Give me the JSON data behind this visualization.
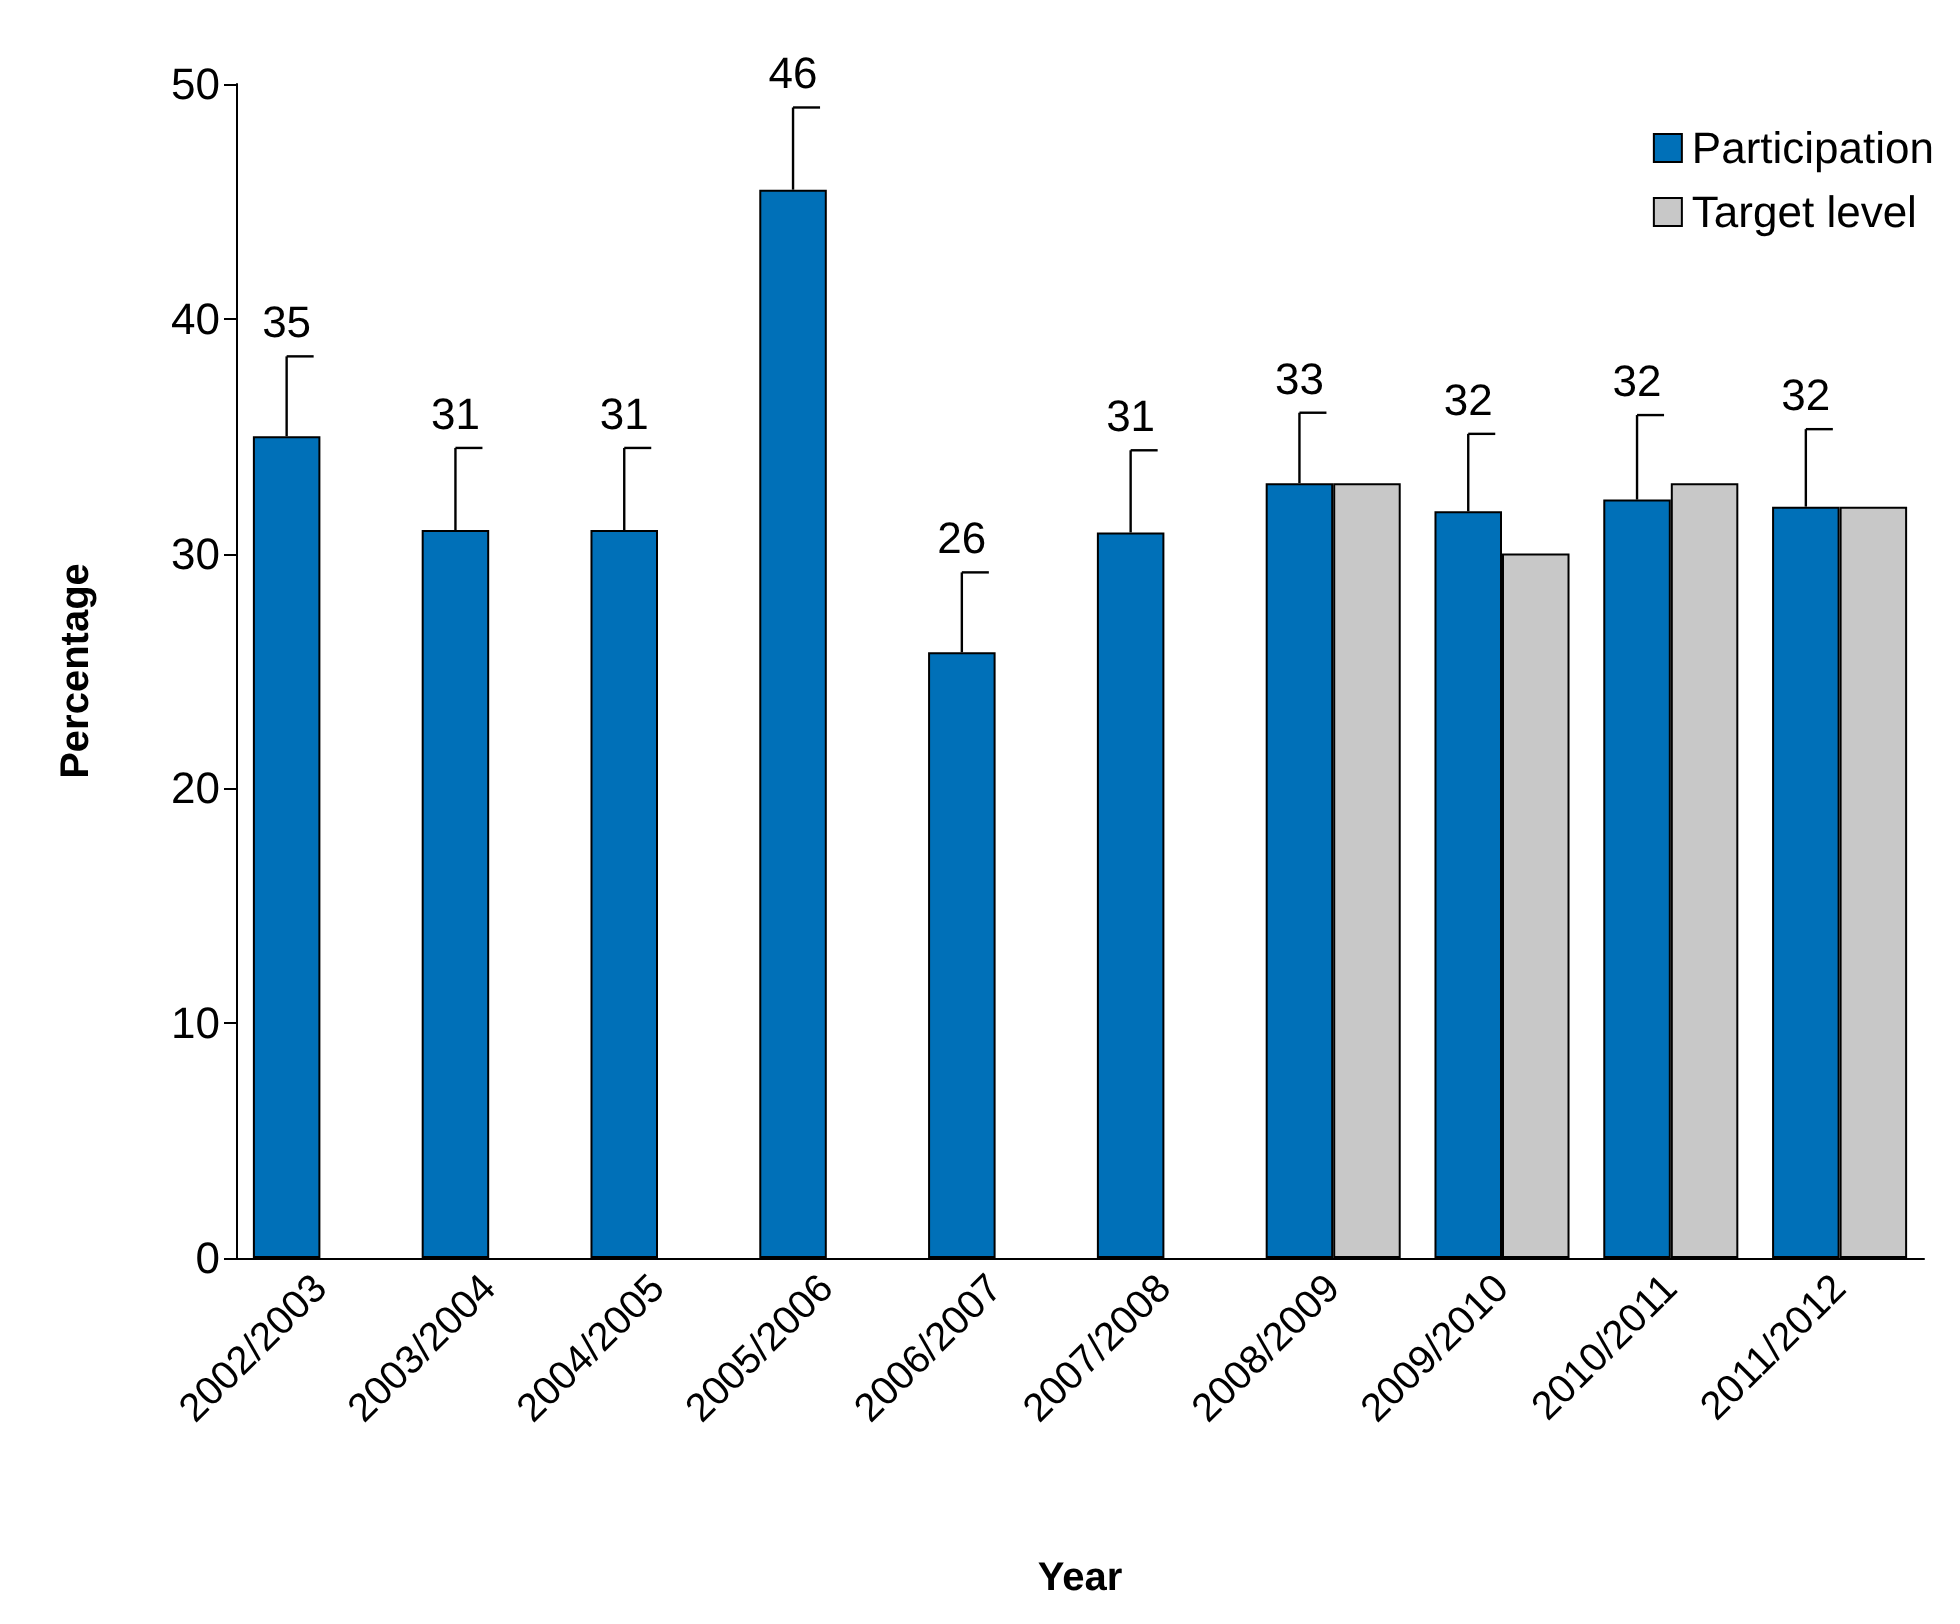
{
  "chart_data": {
    "type": "bar",
    "xlabel": "Year",
    "ylabel": "Percentage",
    "categories": [
      "2002/2003",
      "2003/2004",
      "2004/2005",
      "2005/2006",
      "2006/2007",
      "2007/2008",
      "2008/2009",
      "2009/2010",
      "2010/2011",
      "2011/2012"
    ],
    "series": [
      {
        "name": "Participation",
        "color": "#0070b8",
        "values": [
          35,
          31,
          31,
          45.5,
          25.8,
          30.9,
          33,
          31.8,
          32.3,
          32
        ],
        "errors": [
          [
            35,
            38.4
          ],
          [
            31,
            34.5
          ],
          [
            31,
            34.5
          ],
          [
            45.5,
            49
          ],
          [
            25.8,
            29.2
          ],
          [
            30.9,
            34.4
          ],
          [
            33,
            36
          ],
          [
            31.8,
            35.1
          ],
          [
            32.3,
            35.9
          ],
          [
            32,
            35.3
          ]
        ],
        "value_labels": [
          "35",
          "31",
          "31",
          "46",
          "26",
          "31",
          "33",
          "32",
          "32",
          "32"
        ]
      },
      {
        "name": "Target level",
        "color": "#c8c8c8",
        "values": [
          null,
          null,
          null,
          null,
          null,
          null,
          33,
          30,
          33,
          32
        ]
      }
    ],
    "ylim": [
      0,
      50
    ],
    "yticks": [
      0,
      10,
      20,
      30,
      40,
      50
    ],
    "grid": false,
    "legend": "top right"
  }
}
